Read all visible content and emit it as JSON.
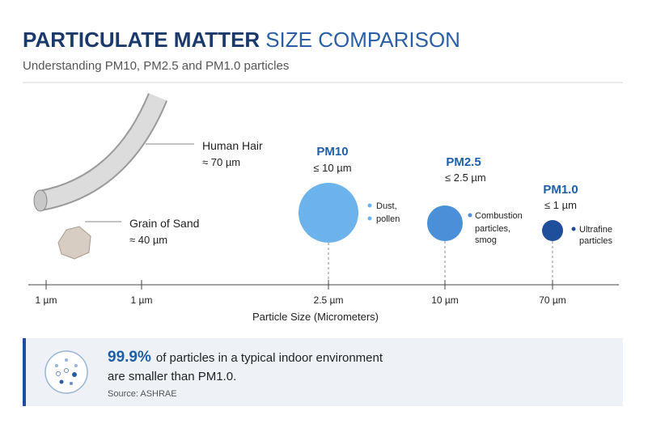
{
  "header": {
    "title_bold": "PARTICULATE MATTER",
    "title_light": "SIZE COMPARISON",
    "subtitle": "Understanding PM10, PM2.5 and PM1.0 particles"
  },
  "references": [
    {
      "label": "Human Hair",
      "size": "≈ 70 µm"
    },
    {
      "label": "Grain of Sand",
      "size": "≈ 40 µm"
    }
  ],
  "particles": [
    {
      "name": "PM10",
      "size": "≤ 10 µm",
      "examples": [
        "Dust,",
        "pollen"
      ]
    },
    {
      "name": "PM2.5",
      "size": "≤ 2.5 µm",
      "examples": [
        "Combustion",
        "particles,",
        "smog"
      ]
    },
    {
      "name": "PM1.0",
      "size": "≤ 1 µm",
      "examples": [
        "Ultrafine",
        "particles"
      ]
    }
  ],
  "axis": {
    "ticks": [
      "1 µm",
      "1 µm",
      "2.5 µm",
      "10 µm",
      "70 µm"
    ],
    "label": "Particle Size (Micrometers)"
  },
  "callout": {
    "highlight": "99.9%",
    "lines": [
      "of particles in a typical indoor environment",
      "are smaller than PM1.0."
    ],
    "source": "Source: ASHRAE"
  }
}
